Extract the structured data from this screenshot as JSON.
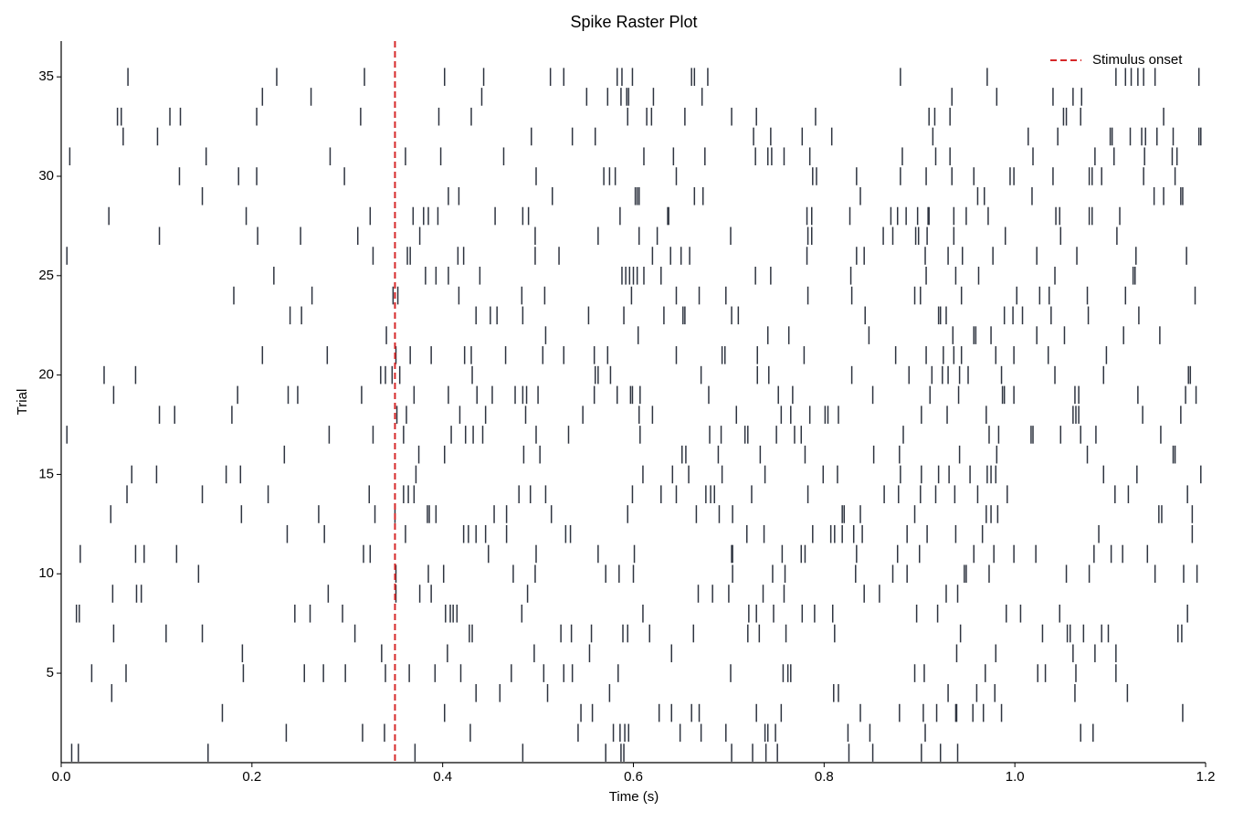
{
  "chart_data": {
    "type": "raster",
    "title": "Spike Raster Plot",
    "xlabel": "Time (s)",
    "ylabel": "Trial",
    "color": "#2e3440",
    "xlim": [
      0,
      1.2
    ],
    "xticks": [
      {
        "value": 0,
        "label": "0.0"
      },
      0.2,
      0.4,
      0.6,
      0.8,
      {
        "value": 1,
        "label": "1.0"
      },
      1.2
    ],
    "ylim": [
      0.5,
      36.8
    ],
    "yticks": [
      5,
      10,
      15,
      20,
      25,
      30,
      35
    ],
    "vline": {
      "x": 0.35,
      "label": "Stimulus onset",
      "color": "#d62728"
    },
    "legend": "upper right",
    "trials": [
      1,
      2,
      3,
      4,
      5,
      6,
      7,
      8,
      9,
      10,
      11,
      12,
      13,
      14,
      15,
      16,
      17,
      18,
      19,
      20,
      21,
      22,
      23,
      24,
      25,
      26,
      27,
      28,
      29,
      30,
      31,
      32,
      33,
      34,
      35
    ],
    "spikes": [
      [
        0.011,
        0.018,
        0.154,
        0.371,
        0.484,
        0.571,
        0.587,
        0.59,
        0.703,
        0.725,
        0.739,
        0.751,
        0.826,
        0.851,
        0.902,
        0.922,
        0.94
      ],
      [
        0.236,
        0.316,
        0.339,
        0.429,
        0.542,
        0.579,
        0.586,
        0.591,
        0.595,
        0.649,
        0.671,
        0.697,
        0.738,
        0.741,
        0.749,
        0.825,
        0.848,
        0.906,
        1.069,
        1.082
      ],
      [
        0.169,
        0.402,
        0.545,
        0.557,
        0.627,
        0.64,
        0.661,
        0.669,
        0.729,
        0.755,
        0.838,
        0.879,
        0.904,
        0.918,
        0.938,
        0.939,
        0.956,
        0.967,
        0.986,
        1.176
      ],
      [
        0.053,
        0.435,
        0.46,
        0.51,
        0.575,
        0.81,
        0.815,
        0.93,
        0.96,
        0.979,
        1.063,
        1.118
      ],
      [
        0.032,
        0.068,
        0.191,
        0.255,
        0.275,
        0.298,
        0.34,
        0.365,
        0.392,
        0.419,
        0.472,
        0.506,
        0.527,
        0.536,
        0.584,
        0.702,
        0.757,
        0.762,
        0.765,
        0.895,
        0.905,
        0.969,
        1.024,
        1.032,
        1.064,
        1.106
      ],
      [
        0.19,
        0.336,
        0.405,
        0.496,
        0.554,
        0.64,
        0.939,
        0.98,
        1.061,
        1.084,
        1.106
      ],
      [
        0.055,
        0.11,
        0.148,
        0.308,
        0.428,
        0.431,
        0.524,
        0.535,
        0.556,
        0.589,
        0.594,
        0.617,
        0.663,
        0.72,
        0.732,
        0.76,
        0.811,
        0.943,
        1.029,
        1.055,
        1.058,
        1.072,
        1.091,
        1.098,
        1.171,
        1.175
      ],
      [
        0.016,
        0.019,
        0.245,
        0.261,
        0.295,
        0.403,
        0.408,
        0.411,
        0.415,
        0.483,
        0.61,
        0.721,
        0.729,
        0.747,
        0.777,
        0.79,
        0.809,
        0.897,
        0.919,
        0.991,
        1.006,
        1.047,
        1.181
      ],
      [
        0.054,
        0.079,
        0.084,
        0.28,
        0.351,
        0.376,
        0.388,
        0.489,
        0.668,
        0.683,
        0.7,
        0.736,
        0.758,
        0.842,
        0.858,
        0.928,
        0.94
      ],
      [
        0.144,
        0.351,
        0.385,
        0.401,
        0.474,
        0.497,
        0.571,
        0.585,
        0.6,
        0.704,
        0.746,
        0.759,
        0.833,
        0.872,
        0.887,
        0.947,
        0.949,
        0.973,
        1.054,
        1.078,
        1.147,
        1.177,
        1.191
      ],
      [
        0.02,
        0.078,
        0.087,
        0.121,
        0.317,
        0.324,
        0.448,
        0.498,
        0.563,
        0.601,
        0.703,
        0.704,
        0.756,
        0.776,
        0.78,
        0.834,
        0.877,
        0.9,
        0.957,
        0.978,
        0.999,
        1.022,
        1.083,
        1.101,
        1.113,
        1.139
      ],
      [
        0.237,
        0.276,
        0.361,
        0.422,
        0.427,
        0.435,
        0.445,
        0.467,
        0.529,
        0.534,
        0.719,
        0.737,
        0.788,
        0.807,
        0.811,
        0.819,
        0.831,
        0.84,
        0.887,
        0.908,
        0.938,
        0.966,
        1.088,
        1.186
      ],
      [
        0.052,
        0.189,
        0.27,
        0.329,
        0.35,
        0.384,
        0.386,
        0.393,
        0.454,
        0.467,
        0.514,
        0.594,
        0.666,
        0.69,
        0.704,
        0.819,
        0.821,
        0.838,
        0.895,
        0.97,
        0.975,
        0.982,
        1.151,
        1.154,
        1.186
      ],
      [
        0.069,
        0.148,
        0.217,
        0.323,
        0.359,
        0.364,
        0.37,
        0.48,
        0.492,
        0.508,
        0.599,
        0.629,
        0.645,
        0.676,
        0.681,
        0.685,
        0.724,
        0.783,
        0.863,
        0.878,
        0.901,
        0.917,
        0.937,
        0.961,
        0.992,
        1.105,
        1.119,
        1.181
      ],
      [
        0.074,
        0.1,
        0.173,
        0.188,
        0.372,
        0.61,
        0.641,
        0.658,
        0.693,
        0.738,
        0.799,
        0.814,
        0.88,
        0.902,
        0.92,
        0.931,
        0.953,
        0.971,
        0.975,
        0.98,
        1.093,
        1.128,
        1.195
      ],
      [
        0.234,
        0.375,
        0.402,
        0.485,
        0.502,
        0.651,
        0.655,
        0.689,
        0.733,
        0.78,
        0.852,
        0.879,
        0.942,
        0.981,
        1.076,
        1.166,
        1.168
      ],
      [
        0.006,
        0.281,
        0.327,
        0.359,
        0.409,
        0.424,
        0.432,
        0.442,
        0.498,
        0.532,
        0.607,
        0.68,
        0.692,
        0.717,
        0.72,
        0.75,
        0.769,
        0.776,
        0.883,
        0.973,
        0.983,
        1.017,
        1.019,
        1.048,
        1.069,
        1.085,
        1.153
      ],
      [
        0.103,
        0.119,
        0.179,
        0.352,
        0.362,
        0.418,
        0.445,
        0.487,
        0.547,
        0.606,
        0.62,
        0.708,
        0.755,
        0.765,
        0.785,
        0.801,
        0.804,
        0.815,
        0.902,
        0.929,
        0.97,
        1.061,
        1.064,
        1.067,
        1.134,
        1.174
      ],
      [
        0.055,
        0.185,
        0.238,
        0.248,
        0.315,
        0.37,
        0.406,
        0.436,
        0.452,
        0.476,
        0.484,
        0.488,
        0.5,
        0.559,
        0.583,
        0.597,
        0.599,
        0.607,
        0.679,
        0.752,
        0.767,
        0.851,
        0.911,
        0.941,
        0.987,
        0.989,
        0.999,
        1.063,
        1.067,
        1.129,
        1.179,
        1.19
      ],
      [
        0.045,
        0.078,
        0.335,
        0.34,
        0.347,
        0.355,
        0.431,
        0.56,
        0.563,
        0.576,
        0.671,
        0.73,
        0.742,
        0.829,
        0.889,
        0.913,
        0.924,
        0.93,
        0.942,
        0.951,
        0.986,
        1.042,
        1.093,
        1.182,
        1.184
      ],
      [
        0.211,
        0.279,
        0.351,
        0.366,
        0.388,
        0.423,
        0.43,
        0.466,
        0.505,
        0.527,
        0.559,
        0.573,
        0.645,
        0.693,
        0.696,
        0.73,
        0.779,
        0.875,
        0.907,
        0.925,
        0.936,
        0.944,
        0.98,
        0.999,
        1.035,
        1.096
      ],
      [
        0.341,
        0.508,
        0.605,
        0.741,
        0.763,
        0.847,
        0.935,
        0.957,
        0.959,
        0.975,
        1.023,
        1.052,
        1.114,
        1.152
      ],
      [
        0.24,
        0.252,
        0.435,
        0.45,
        0.457,
        0.484,
        0.553,
        0.59,
        0.632,
        0.652,
        0.654,
        0.703,
        0.71,
        0.843,
        0.92,
        0.922,
        0.928,
        0.989,
        0.998,
        1.008,
        1.038,
        1.077,
        1.13
      ],
      [
        0.181,
        0.263,
        0.348,
        0.353,
        0.417,
        0.483,
        0.507,
        0.598,
        0.645,
        0.669,
        0.697,
        0.783,
        0.829,
        0.895,
        0.901,
        0.944,
        1.002,
        1.026,
        1.036,
        1.076,
        1.116,
        1.189
      ],
      [
        0.223,
        0.382,
        0.393,
        0.406,
        0.439,
        0.588,
        0.592,
        0.596,
        0.6,
        0.604,
        0.611,
        0.629,
        0.728,
        0.744,
        0.828,
        0.907,
        0.938,
        0.962,
        1.042,
        1.124,
        1.126
      ],
      [
        0.006,
        0.327,
        0.363,
        0.366,
        0.416,
        0.422,
        0.497,
        0.522,
        0.62,
        0.639,
        0.65,
        0.659,
        0.782,
        0.834,
        0.842,
        0.906,
        0.93,
        0.945,
        0.977,
        1.023,
        1.065,
        1.127,
        1.18
      ],
      [
        0.103,
        0.206,
        0.251,
        0.311,
        0.376,
        0.497,
        0.563,
        0.606,
        0.625,
        0.702,
        0.783,
        0.787,
        0.862,
        0.872,
        0.896,
        0.899,
        0.908,
        0.936,
        0.99,
        1.048,
        1.107
      ],
      [
        0.05,
        0.194,
        0.324,
        0.369,
        0.38,
        0.385,
        0.395,
        0.455,
        0.484,
        0.49,
        0.586,
        0.636,
        0.637,
        0.782,
        0.787,
        0.827,
        0.87,
        0.877,
        0.886,
        0.898,
        0.909,
        0.91,
        0.936,
        0.949,
        0.972,
        1.043,
        1.047,
        1.078,
        1.081,
        1.11
      ],
      [
        0.148,
        0.406,
        0.417,
        0.515,
        0.602,
        0.604,
        0.606,
        0.664,
        0.673,
        0.838,
        0.961,
        0.968,
        1.018,
        1.146,
        1.156,
        1.174,
        1.176
      ],
      [
        0.124,
        0.186,
        0.205,
        0.297,
        0.498,
        0.569,
        0.575,
        0.581,
        0.645,
        0.788,
        0.792,
        0.834,
        0.88,
        0.907,
        0.934,
        0.957,
        0.995,
        0.999,
        1.04,
        1.078,
        1.081,
        1.091,
        1.135,
        1.168
      ],
      [
        0.009,
        0.152,
        0.282,
        0.361,
        0.398,
        0.464,
        0.611,
        0.642,
        0.675,
        0.728,
        0.741,
        0.745,
        0.758,
        0.785,
        0.882,
        0.917,
        0.932,
        1.019,
        1.084,
        1.104,
        1.136,
        1.165,
        1.17
      ],
      [
        0.065,
        0.101,
        0.493,
        0.536,
        0.56,
        0.726,
        0.744,
        0.777,
        0.808,
        0.914,
        1.014,
        1.045,
        1.1,
        1.102,
        1.121,
        1.133,
        1.137,
        1.149,
        1.166,
        1.193,
        1.195
      ],
      [
        0.059,
        0.063,
        0.114,
        0.125,
        0.205,
        0.314,
        0.396,
        0.43,
        0.594,
        0.614,
        0.619,
        0.654,
        0.703,
        0.729,
        0.791,
        0.91,
        0.916,
        0.932,
        1.051,
        1.054,
        1.069,
        1.156
      ],
      [
        0.211,
        0.262,
        0.441,
        0.551,
        0.573,
        0.587,
        0.593,
        0.595,
        0.621,
        0.672,
        0.934,
        0.981,
        1.04,
        1.061,
        1.07
      ],
      [
        0.07,
        0.226,
        0.318,
        0.402,
        0.443,
        0.513,
        0.527,
        0.583,
        0.588,
        0.599,
        0.661,
        0.664,
        0.678,
        0.88,
        0.971,
        1.106,
        1.116,
        1.122,
        1.129,
        1.135,
        1.147,
        1.193
      ]
    ]
  }
}
